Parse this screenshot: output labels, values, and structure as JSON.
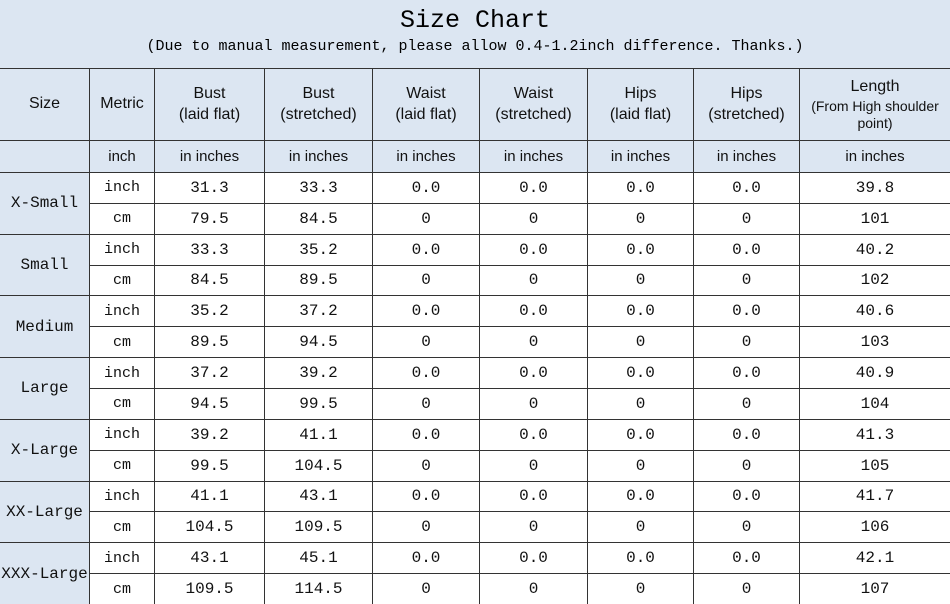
{
  "header": {
    "title": "Size Chart",
    "subtitle": "(Due to manual measurement, please allow 0.4-1.2inch difference. Thanks.)"
  },
  "table": {
    "columns": [
      {
        "name": "Size"
      },
      {
        "name": "Metric"
      },
      {
        "name": "Bust",
        "note": "(laid flat)"
      },
      {
        "name": "Bust",
        "note": "(stretched)"
      },
      {
        "name": "Waist",
        "note": "(laid flat)"
      },
      {
        "name": "Waist",
        "note": "(stretched)"
      },
      {
        "name": "Hips",
        "note": "(laid flat)"
      },
      {
        "name": "Hips",
        "note": "(stretched)"
      },
      {
        "name": "Length",
        "note": "(From High shoulder point)"
      }
    ],
    "units_row": [
      "inch",
      "in inches",
      "in inches",
      "in inches",
      "in inches",
      "in inches",
      "in inches",
      "in inches"
    ],
    "rows": [
      {
        "size": "X-Small",
        "inch": {
          "metric": "inch",
          "values": [
            "31.3",
            "33.3",
            "0.0",
            "0.0",
            "0.0",
            "0.0",
            "39.8"
          ]
        },
        "cm": {
          "metric": "cm",
          "values": [
            "79.5",
            "84.5",
            "0",
            "0",
            "0",
            "0",
            "101"
          ]
        }
      },
      {
        "size": "Small",
        "inch": {
          "metric": "inch",
          "values": [
            "33.3",
            "35.2",
            "0.0",
            "0.0",
            "0.0",
            "0.0",
            "40.2"
          ]
        },
        "cm": {
          "metric": "cm",
          "values": [
            "84.5",
            "89.5",
            "0",
            "0",
            "0",
            "0",
            "102"
          ]
        }
      },
      {
        "size": "Medium",
        "inch": {
          "metric": "inch",
          "values": [
            "35.2",
            "37.2",
            "0.0",
            "0.0",
            "0.0",
            "0.0",
            "40.6"
          ]
        },
        "cm": {
          "metric": "cm",
          "values": [
            "89.5",
            "94.5",
            "0",
            "0",
            "0",
            "0",
            "103"
          ]
        }
      },
      {
        "size": "Large",
        "inch": {
          "metric": "inch",
          "values": [
            "37.2",
            "39.2",
            "0.0",
            "0.0",
            "0.0",
            "0.0",
            "40.9"
          ]
        },
        "cm": {
          "metric": "cm",
          "values": [
            "94.5",
            "99.5",
            "0",
            "0",
            "0",
            "0",
            "104"
          ]
        }
      },
      {
        "size": "X-Large",
        "inch": {
          "metric": "inch",
          "values": [
            "39.2",
            "41.1",
            "0.0",
            "0.0",
            "0.0",
            "0.0",
            "41.3"
          ]
        },
        "cm": {
          "metric": "cm",
          "values": [
            "99.5",
            "104.5",
            "0",
            "0",
            "0",
            "0",
            "105"
          ]
        }
      },
      {
        "size": "XX-Large",
        "inch": {
          "metric": "inch",
          "values": [
            "41.1",
            "43.1",
            "0.0",
            "0.0",
            "0.0",
            "0.0",
            "41.7"
          ]
        },
        "cm": {
          "metric": "cm",
          "values": [
            "104.5",
            "109.5",
            "0",
            "0",
            "0",
            "0",
            "106"
          ]
        }
      },
      {
        "size": "XXX-Large",
        "inch": {
          "metric": "inch",
          "values": [
            "43.1",
            "45.1",
            "0.0",
            "0.0",
            "0.0",
            "0.0",
            "42.1"
          ]
        },
        "cm": {
          "metric": "cm",
          "values": [
            "109.5",
            "114.5",
            "0",
            "0",
            "0",
            "0",
            "107"
          ]
        }
      }
    ]
  }
}
